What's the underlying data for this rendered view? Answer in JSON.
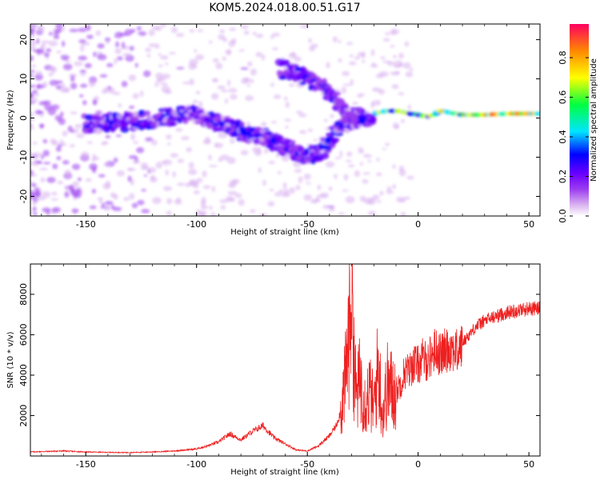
{
  "title": "KOM5.2024.018.00.51.G17",
  "chart_data": [
    {
      "type": "heatmap",
      "xlabel": "Height of straight line (km)",
      "ylabel": "Frequency (Hz)",
      "xlim": [
        -175,
        55
      ],
      "ylim": [
        -25,
        24
      ],
      "xticks": [
        -150,
        -100,
        -50,
        0,
        50
      ],
      "yticks": [
        -20,
        -10,
        0,
        10,
        20
      ],
      "colorbar": {
        "label": "Normalized spectral amplitude",
        "range": [
          0,
          0.97
        ],
        "ticks": [
          0.0,
          0.2,
          0.4,
          0.6,
          0.8
        ],
        "colormap": [
          "#ffffff",
          "#d9b0f0",
          "#9b3cf0",
          "#6a00ff",
          "#0000ff",
          "#00e6ff",
          "#00ff40",
          "#ffff00",
          "#ff8800",
          "#ff0040"
        ]
      },
      "ridges": [
        {
          "name_hint": "main",
          "points": [
            [
              -150,
              -1.5
            ],
            [
              -130,
              -1
            ],
            [
              -110,
              0.5
            ],
            [
              -100,
              1
            ],
            [
              -90,
              -1
            ],
            [
              -80,
              -3.5
            ],
            [
              -70,
              -5
            ],
            [
              -60,
              -7.5
            ],
            [
              -50,
              -9.5
            ],
            [
              -45,
              -9
            ],
            [
              -40,
              -6
            ],
            [
              -35,
              -2
            ],
            [
              -30,
              -1
            ],
            [
              -25,
              0
            ],
            [
              -15,
              1.5
            ],
            [
              -10,
              1.5
            ],
            [
              0,
              0.5
            ],
            [
              5,
              0
            ],
            [
              10,
              1.5
            ],
            [
              20,
              0.5
            ],
            [
              30,
              0.5
            ],
            [
              40,
              0.8
            ],
            [
              55,
              0.8
            ]
          ]
        },
        {
          "name_hint": "upper-branch",
          "points": [
            [
              -62,
              12.5
            ],
            [
              -55,
              11.5
            ],
            [
              -50,
              10
            ],
            [
              -45,
              8.5
            ],
            [
              -40,
              6
            ],
            [
              -35,
              3
            ],
            [
              -30,
              1
            ],
            [
              -25,
              0
            ]
          ]
        }
      ]
    },
    {
      "type": "line",
      "xlabel": "Height of straight line (km)",
      "ylabel": "SNR (10 * v/v)",
      "xlim": [
        -175,
        55
      ],
      "ylim": [
        0,
        9500
      ],
      "xticks": [
        -150,
        -100,
        -50,
        0,
        50
      ],
      "yticks": [
        2000,
        4000,
        6000,
        8000
      ],
      "color": "#ee2020",
      "x": [
        -175,
        -160,
        -150,
        -140,
        -130,
        -120,
        -110,
        -100,
        -95,
        -90,
        -85,
        -80,
        -75,
        -70,
        -65,
        -60,
        -55,
        -50,
        -45,
        -40,
        -37,
        -35,
        -33,
        -31,
        -30,
        -29,
        -28,
        -26,
        -24,
        -22,
        -20,
        -18,
        -16,
        -14,
        -12,
        -10,
        -8,
        -6,
        -4,
        -2,
        0,
        2,
        4,
        6,
        8,
        10,
        12,
        15,
        18,
        20,
        23,
        26,
        30,
        35,
        40,
        45,
        50,
        55
      ],
      "y": [
        200,
        250,
        200,
        180,
        170,
        200,
        250,
        350,
        500,
        700,
        1100,
        800,
        1200,
        1500,
        900,
        600,
        300,
        250,
        500,
        1000,
        1500,
        2200,
        3500,
        6500,
        9500,
        5000,
        3000,
        3800,
        2700,
        3200,
        2400,
        4500,
        2000,
        3500,
        3300,
        3200,
        3600,
        4200,
        4200,
        4600,
        4500,
        4800,
        4700,
        5000,
        5300,
        5000,
        5200,
        5400,
        5100,
        5600,
        6000,
        6400,
        6700,
        6900,
        7100,
        7200,
        7300,
        7300
      ]
    }
  ]
}
